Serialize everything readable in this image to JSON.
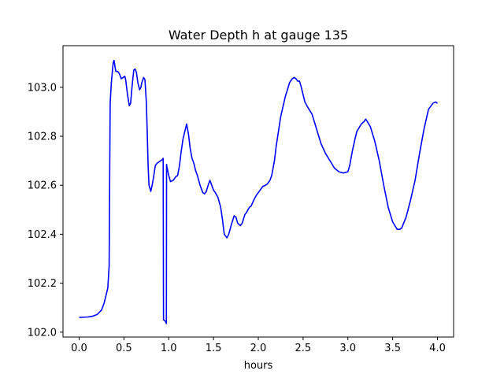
{
  "chart_data": {
    "type": "line",
    "title": "Water Depth h at gauge 135",
    "xlabel": "hours",
    "ylabel": "",
    "xlim": [
      -0.18,
      4.18
    ],
    "ylim": [
      101.98,
      103.17
    ],
    "grid": false,
    "x_ticks": [
      0.0,
      0.5,
      1.0,
      1.5,
      2.0,
      2.5,
      3.0,
      3.5,
      4.0
    ],
    "x_tick_labels": [
      "0.0",
      "0.5",
      "1.0",
      "1.5",
      "2.0",
      "2.5",
      "3.0",
      "3.5",
      "4.0"
    ],
    "y_ticks": [
      102.0,
      102.2,
      102.4,
      102.6,
      102.8,
      103.0
    ],
    "y_tick_labels": [
      "102.0",
      "102.2",
      "102.4",
      "102.6",
      "102.8",
      "103.0"
    ],
    "series": [
      {
        "color": "#0000ff",
        "x": [
          0.0,
          0.1,
          0.15,
          0.2,
          0.25,
          0.28,
          0.3,
          0.32,
          0.335,
          0.345,
          0.347,
          0.352,
          0.36,
          0.37,
          0.38,
          0.39,
          0.4,
          0.41,
          0.43,
          0.45,
          0.47,
          0.49,
          0.51,
          0.52,
          0.54,
          0.56,
          0.575,
          0.59,
          0.61,
          0.625,
          0.64,
          0.655,
          0.675,
          0.69,
          0.7,
          0.72,
          0.735,
          0.75,
          0.76,
          0.77,
          0.78,
          0.8,
          0.815,
          0.83,
          0.85,
          0.87,
          0.89,
          0.91,
          0.93,
          0.938,
          0.942,
          0.948,
          0.96,
          0.97,
          0.974,
          0.976,
          0.98,
          1.0,
          1.02,
          1.05,
          1.08,
          1.1,
          1.12,
          1.14,
          1.16,
          1.18,
          1.2,
          1.22,
          1.24,
          1.26,
          1.28,
          1.3,
          1.32,
          1.35,
          1.38,
          1.4,
          1.42,
          1.44,
          1.46,
          1.48,
          1.5,
          1.52,
          1.55,
          1.58,
          1.6,
          1.62,
          1.65,
          1.67,
          1.7,
          1.73,
          1.75,
          1.77,
          1.8,
          1.82,
          1.85,
          1.87,
          1.9,
          1.92,
          1.95,
          1.98,
          2.0,
          2.05,
          2.08,
          2.1,
          2.13,
          2.15,
          2.18,
          2.2,
          2.25,
          2.3,
          2.35,
          2.38,
          2.4,
          2.42,
          2.44,
          2.46,
          2.48,
          2.5,
          2.52,
          2.55,
          2.6,
          2.65,
          2.7,
          2.75,
          2.8,
          2.85,
          2.9,
          2.95,
          3.0,
          3.02,
          3.05,
          3.08,
          3.1,
          3.15,
          3.18,
          3.2,
          3.25,
          3.3,
          3.35,
          3.4,
          3.45,
          3.5,
          3.55,
          3.58,
          3.6,
          3.65,
          3.7,
          3.75,
          3.8,
          3.85,
          3.9,
          3.95,
          3.98,
          4.0
        ],
        "y": [
          102.06,
          102.062,
          102.065,
          102.072,
          102.09,
          102.12,
          102.15,
          102.18,
          102.27,
          102.85,
          102.94,
          102.97,
          103.02,
          103.06,
          103.1,
          103.11,
          103.085,
          103.065,
          103.065,
          103.055,
          103.035,
          103.04,
          103.045,
          103.03,
          102.97,
          102.925,
          102.935,
          103.0,
          103.07,
          103.075,
          103.06,
          103.02,
          102.99,
          103.0,
          103.02,
          103.04,
          103.03,
          102.94,
          102.82,
          102.68,
          102.6,
          102.575,
          102.6,
          102.63,
          102.68,
          102.69,
          102.695,
          102.7,
          102.705,
          102.71,
          102.05,
          102.05,
          102.045,
          102.04,
          102.035,
          102.685,
          102.675,
          102.64,
          102.615,
          102.62,
          102.635,
          102.64,
          102.68,
          102.74,
          102.79,
          102.82,
          102.85,
          102.81,
          102.75,
          102.71,
          102.69,
          102.66,
          102.64,
          102.6,
          102.57,
          102.565,
          102.575,
          102.6,
          102.62,
          102.6,
          102.58,
          102.57,
          102.55,
          102.51,
          102.46,
          102.4,
          102.385,
          102.4,
          102.44,
          102.475,
          102.47,
          102.445,
          102.435,
          102.445,
          102.48,
          102.49,
          102.51,
          102.515,
          102.54,
          102.56,
          102.57,
          102.595,
          102.6,
          102.605,
          102.62,
          102.64,
          102.7,
          102.76,
          102.88,
          102.96,
          103.02,
          103.035,
          103.04,
          103.035,
          103.025,
          103.025,
          103.0,
          102.97,
          102.94,
          102.92,
          102.89,
          102.83,
          102.77,
          102.73,
          102.7,
          102.67,
          102.655,
          102.65,
          102.655,
          102.68,
          102.74,
          102.79,
          102.82,
          102.85,
          102.86,
          102.87,
          102.84,
          102.78,
          102.7,
          102.6,
          102.51,
          102.45,
          102.42,
          102.42,
          102.425,
          102.47,
          102.54,
          102.62,
          102.73,
          102.83,
          102.91,
          102.935,
          102.94,
          102.935
        ]
      }
    ]
  }
}
